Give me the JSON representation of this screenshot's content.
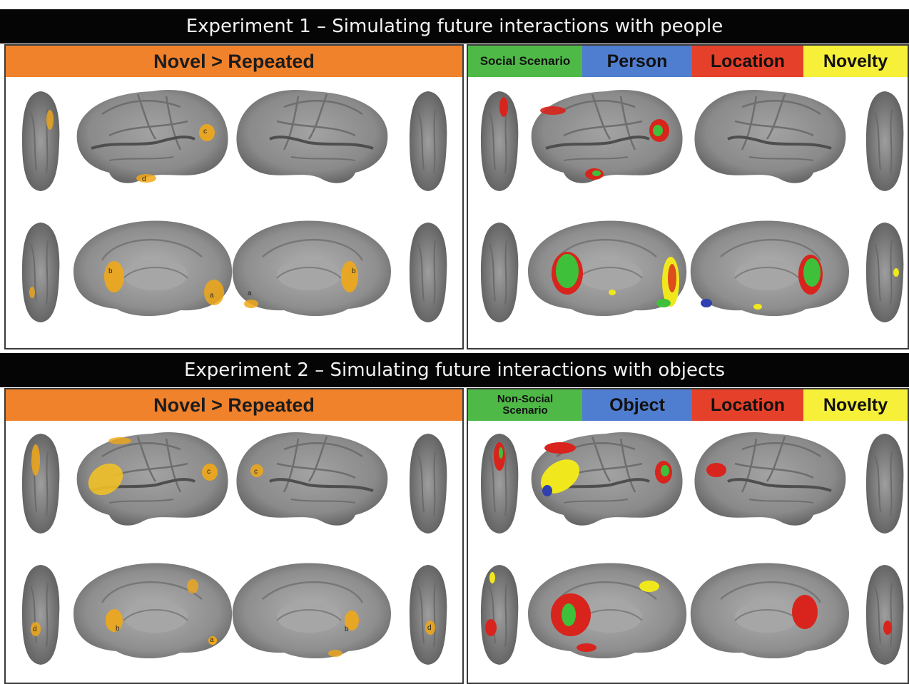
{
  "experiments": [
    {
      "title": "Experiment 1 – Simulating future interactions with people",
      "contrast_label": "Novel > Repeated",
      "legend": [
        {
          "label": "Social Scenario",
          "color": "#4fb947"
        },
        {
          "label": "Person",
          "color": "#4f7ed0"
        },
        {
          "label": "Location",
          "color": "#e5412a"
        },
        {
          "label": "Novelty",
          "color": "#f7f039"
        }
      ]
    },
    {
      "title": "Experiment 2 – Simulating future interactions with objects",
      "contrast_label": "Novel > Repeated",
      "legend": [
        {
          "label": "Non-Social Scenario",
          "line1": "Non-Social",
          "line2": "Scenario",
          "color": "#4fb947"
        },
        {
          "label": "Object",
          "color": "#4f7ed0"
        },
        {
          "label": "Location",
          "color": "#e5412a"
        },
        {
          "label": "Novelty",
          "color": "#f7f039"
        }
      ]
    }
  ],
  "region_labels": [
    "a",
    "b",
    "c",
    "d"
  ],
  "colors": {
    "header_bg": "#050505",
    "contrast_bar": "#f1822c",
    "brain_surface": "#8c8c8c",
    "activation_orange": "#f0a818",
    "activation_green": "#3fc03a",
    "activation_red": "#d8241c",
    "activation_yellow": "#f0e81c",
    "activation_blue": "#3040b0"
  }
}
